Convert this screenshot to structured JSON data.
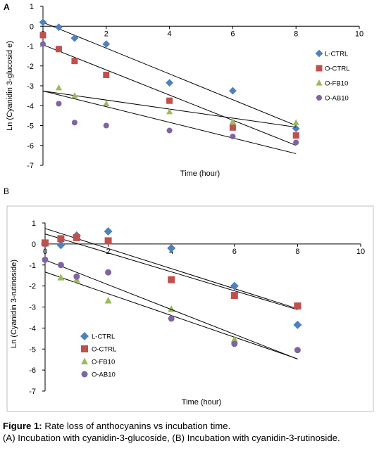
{
  "colors": {
    "L-CTRL": "#4f81bd",
    "O-CTRL": "#c0504d",
    "O-FB10": "#9bbb59",
    "O-AB10": "#8064a2",
    "axis": "#000000",
    "trendline": "#000000",
    "frame": "#bfbfbf"
  },
  "legend_markers": {
    "L-CTRL": "diamond",
    "O-CTRL": "square",
    "O-FB10": "triangle",
    "O-AB10": "circle"
  },
  "caption": {
    "bold": "Figure 1:",
    "text": " Rate loss of anthocyanins vs incubation time.",
    "line2": "(A) Incubation with cyanidin-3-glucoside, (B) Incubation with cyanidin-3-rutinoside."
  },
  "chart_data": [
    {
      "panel_label": "A",
      "type": "scatter",
      "xlabel": "Time (hour)",
      "ylabel": "Ln (Cyanidin 3-glucosid e)",
      "xlim": [
        0,
        10
      ],
      "ylim": [
        -7,
        1
      ],
      "xticks": [
        0,
        2,
        4,
        6,
        8,
        10
      ],
      "yticks": [
        1,
        0,
        -1,
        -2,
        -3,
        -4,
        -5,
        -6,
        -7
      ],
      "legend_position": "right",
      "trendlines": true,
      "series": [
        {
          "name": "L-CTRL",
          "x": [
            0,
            0.5,
            1,
            2,
            4,
            6,
            8
          ],
          "y": [
            0.2,
            -0.05,
            -0.6,
            -0.9,
            -2.85,
            -3.25,
            -5.15
          ]
        },
        {
          "name": "O-CTRL",
          "x": [
            0,
            0.5,
            1,
            2,
            4,
            6,
            8
          ],
          "y": [
            -0.45,
            -1.15,
            -1.75,
            -2.45,
            -3.75,
            -5.1,
            -5.5
          ]
        },
        {
          "name": "O-FB10",
          "x": [
            0.5,
            1,
            2,
            4,
            6,
            8
          ],
          "y": [
            -3.1,
            -3.5,
            -3.9,
            -4.3,
            -4.8,
            -4.85
          ]
        },
        {
          "name": "O-AB10",
          "x": [
            0,
            0.5,
            1,
            2,
            4,
            6,
            8
          ],
          "y": [
            -0.9,
            -3.9,
            -4.85,
            -5.0,
            -5.25,
            -5.55,
            -5.85
          ]
        }
      ]
    },
    {
      "panel_label": "B",
      "type": "scatter",
      "xlabel": "Time (hour)",
      "ylabel": "Ln (Cyanidin 3-rutinoside)",
      "xlim": [
        0,
        10
      ],
      "ylim": [
        -7,
        1
      ],
      "xticks": [
        0,
        2,
        4,
        6,
        8,
        10
      ],
      "yticks": [
        1,
        0,
        -1,
        -2,
        -3,
        -4,
        -5,
        -6,
        -7
      ],
      "legend_position": "bottom-left",
      "trendlines": true,
      "series": [
        {
          "name": "L-CTRL",
          "x": [
            0,
            0.5,
            1,
            2,
            4,
            6,
            8
          ],
          "y": [
            0.0,
            -0.05,
            0.4,
            0.6,
            -0.2,
            -2.0,
            -3.85
          ]
        },
        {
          "name": "O-CTRL",
          "x": [
            0,
            0.5,
            1,
            2,
            4,
            6,
            8
          ],
          "y": [
            0.05,
            0.25,
            0.3,
            0.15,
            -1.7,
            -2.45,
            -2.95
          ]
        },
        {
          "name": "O-FB10",
          "x": [
            0.5,
            1,
            2,
            4,
            6
          ],
          "y": [
            -1.6,
            -1.7,
            -2.7,
            -3.1,
            -4.55
          ]
        },
        {
          "name": "O-AB10",
          "x": [
            0,
            0.5,
            1,
            2,
            4,
            6,
            8
          ],
          "y": [
            -0.75,
            -1.0,
            -1.55,
            -1.35,
            -3.55,
            -4.75,
            -5.05
          ]
        }
      ]
    }
  ]
}
